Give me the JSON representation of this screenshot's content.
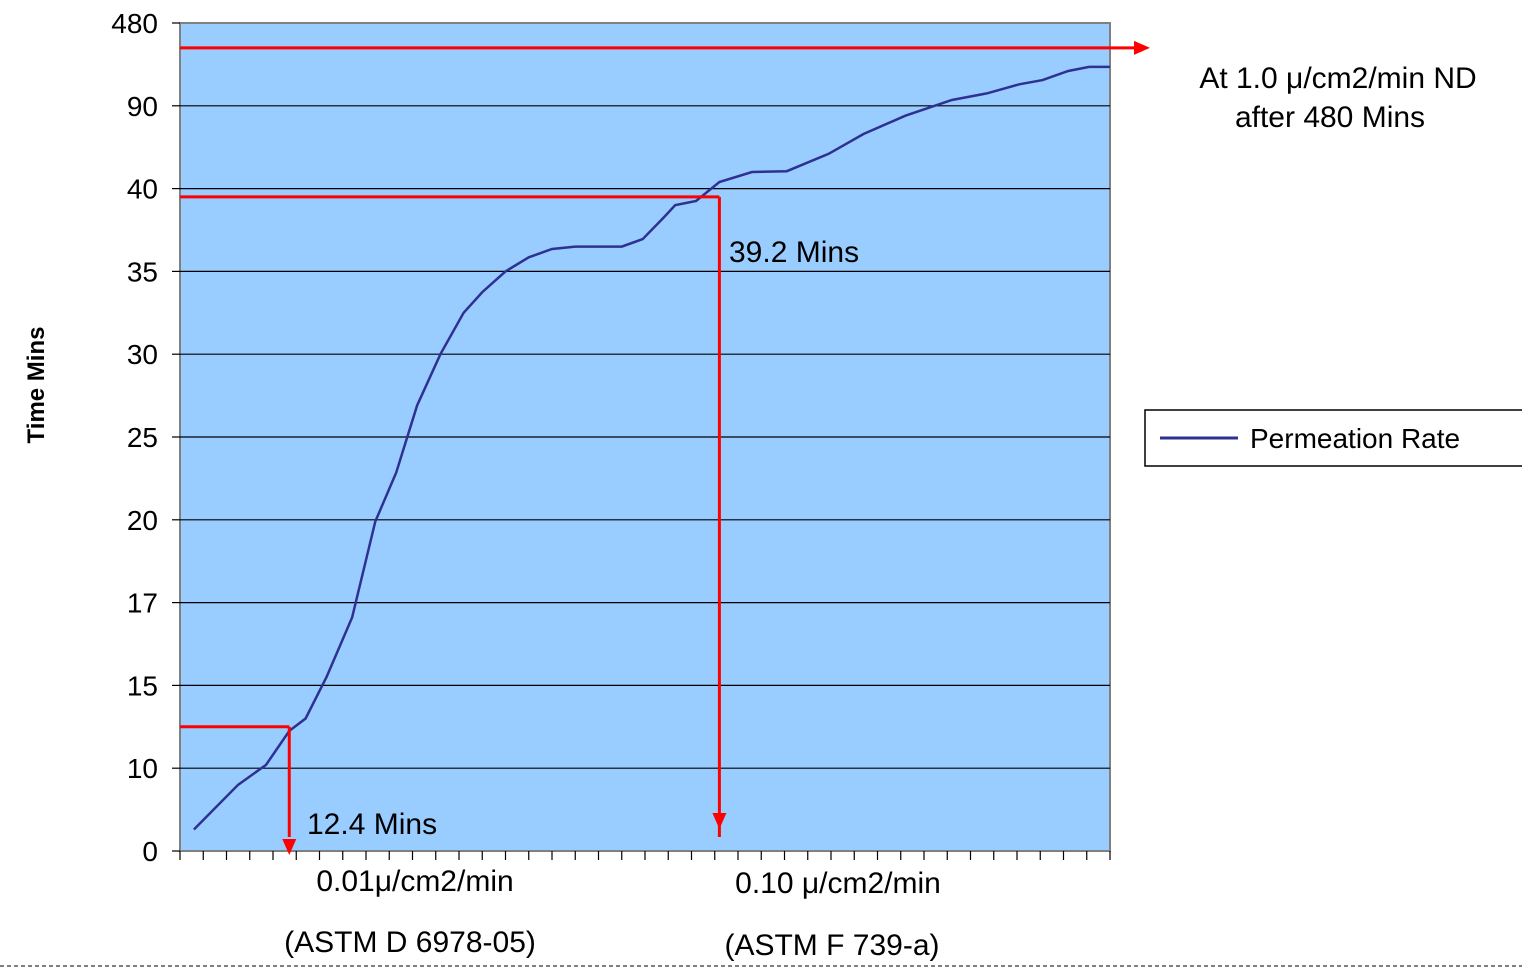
{
  "chart_data": {
    "type": "line",
    "ylabel": "Time Mins",
    "xlabel": "",
    "y_tick_labels": [
      "0",
      "10",
      "15",
      "17",
      "20",
      "25",
      "30",
      "35",
      "40",
      "90",
      "480"
    ],
    "x_tick_count": 41,
    "ylim": [
      0,
      10
    ],
    "grid": true,
    "legend_position": "right",
    "series": [
      {
        "name": "Permeation Rate",
        "color": "#2e3192",
        "x": [
          0.6,
          2.5,
          3.7,
          4.7,
          5.4,
          6.3,
          7.4,
          8.4,
          9.3,
          10.2,
          11.2,
          12.2,
          13.0,
          14.0,
          15.0,
          16.0,
          17.0,
          18.0,
          19.0,
          19.9,
          20.8,
          21.3,
          22.2,
          23.2,
          24.6,
          26.1,
          27.9,
          29.4,
          31.2,
          33.2,
          34.7,
          36.1,
          37.1,
          38.2,
          39.1,
          40.0
        ],
        "y": [
          0.26,
          0.8,
          1.04,
          1.45,
          1.6,
          2.1,
          2.82,
          3.98,
          4.57,
          5.38,
          6.0,
          6.5,
          6.75,
          7.0,
          7.17,
          7.27,
          7.3,
          7.3,
          7.3,
          7.39,
          7.65,
          7.8,
          7.85,
          8.08,
          8.2,
          8.21,
          8.42,
          8.66,
          8.88,
          9.07,
          9.15,
          9.26,
          9.31,
          9.42,
          9.47,
          9.47
        ]
      }
    ],
    "reference_lines": [
      {
        "label": "12.4 Mins",
        "y": 1.5,
        "x": 4.7,
        "color": "#ff0000"
      },
      {
        "label": "39.2 Mins",
        "y": 7.9,
        "x": 23.2,
        "color": "#ff0000"
      },
      {
        "label": "At 1.0 μ/cm2/min ND after 480 Mins",
        "y": 9.7,
        "color": "#ff0000"
      }
    ]
  },
  "annotations": {
    "mins_12": "12.4 Mins",
    "mins_39": "39.2 Mins",
    "nd_line1": "At 1.0 μ/cm2/min ND",
    "nd_line2": "after 480 Mins",
    "rate_001": "0.01μ/cm2/min",
    "astm_d": "(ASTM D 6978-05)",
    "rate_010": "0.10 μ/cm2/min",
    "astm_f": "(ASTM F 739-a)"
  },
  "colors": {
    "plot_bg": "#99ccff",
    "reference": "#ff0000",
    "series": "#2e3192"
  }
}
